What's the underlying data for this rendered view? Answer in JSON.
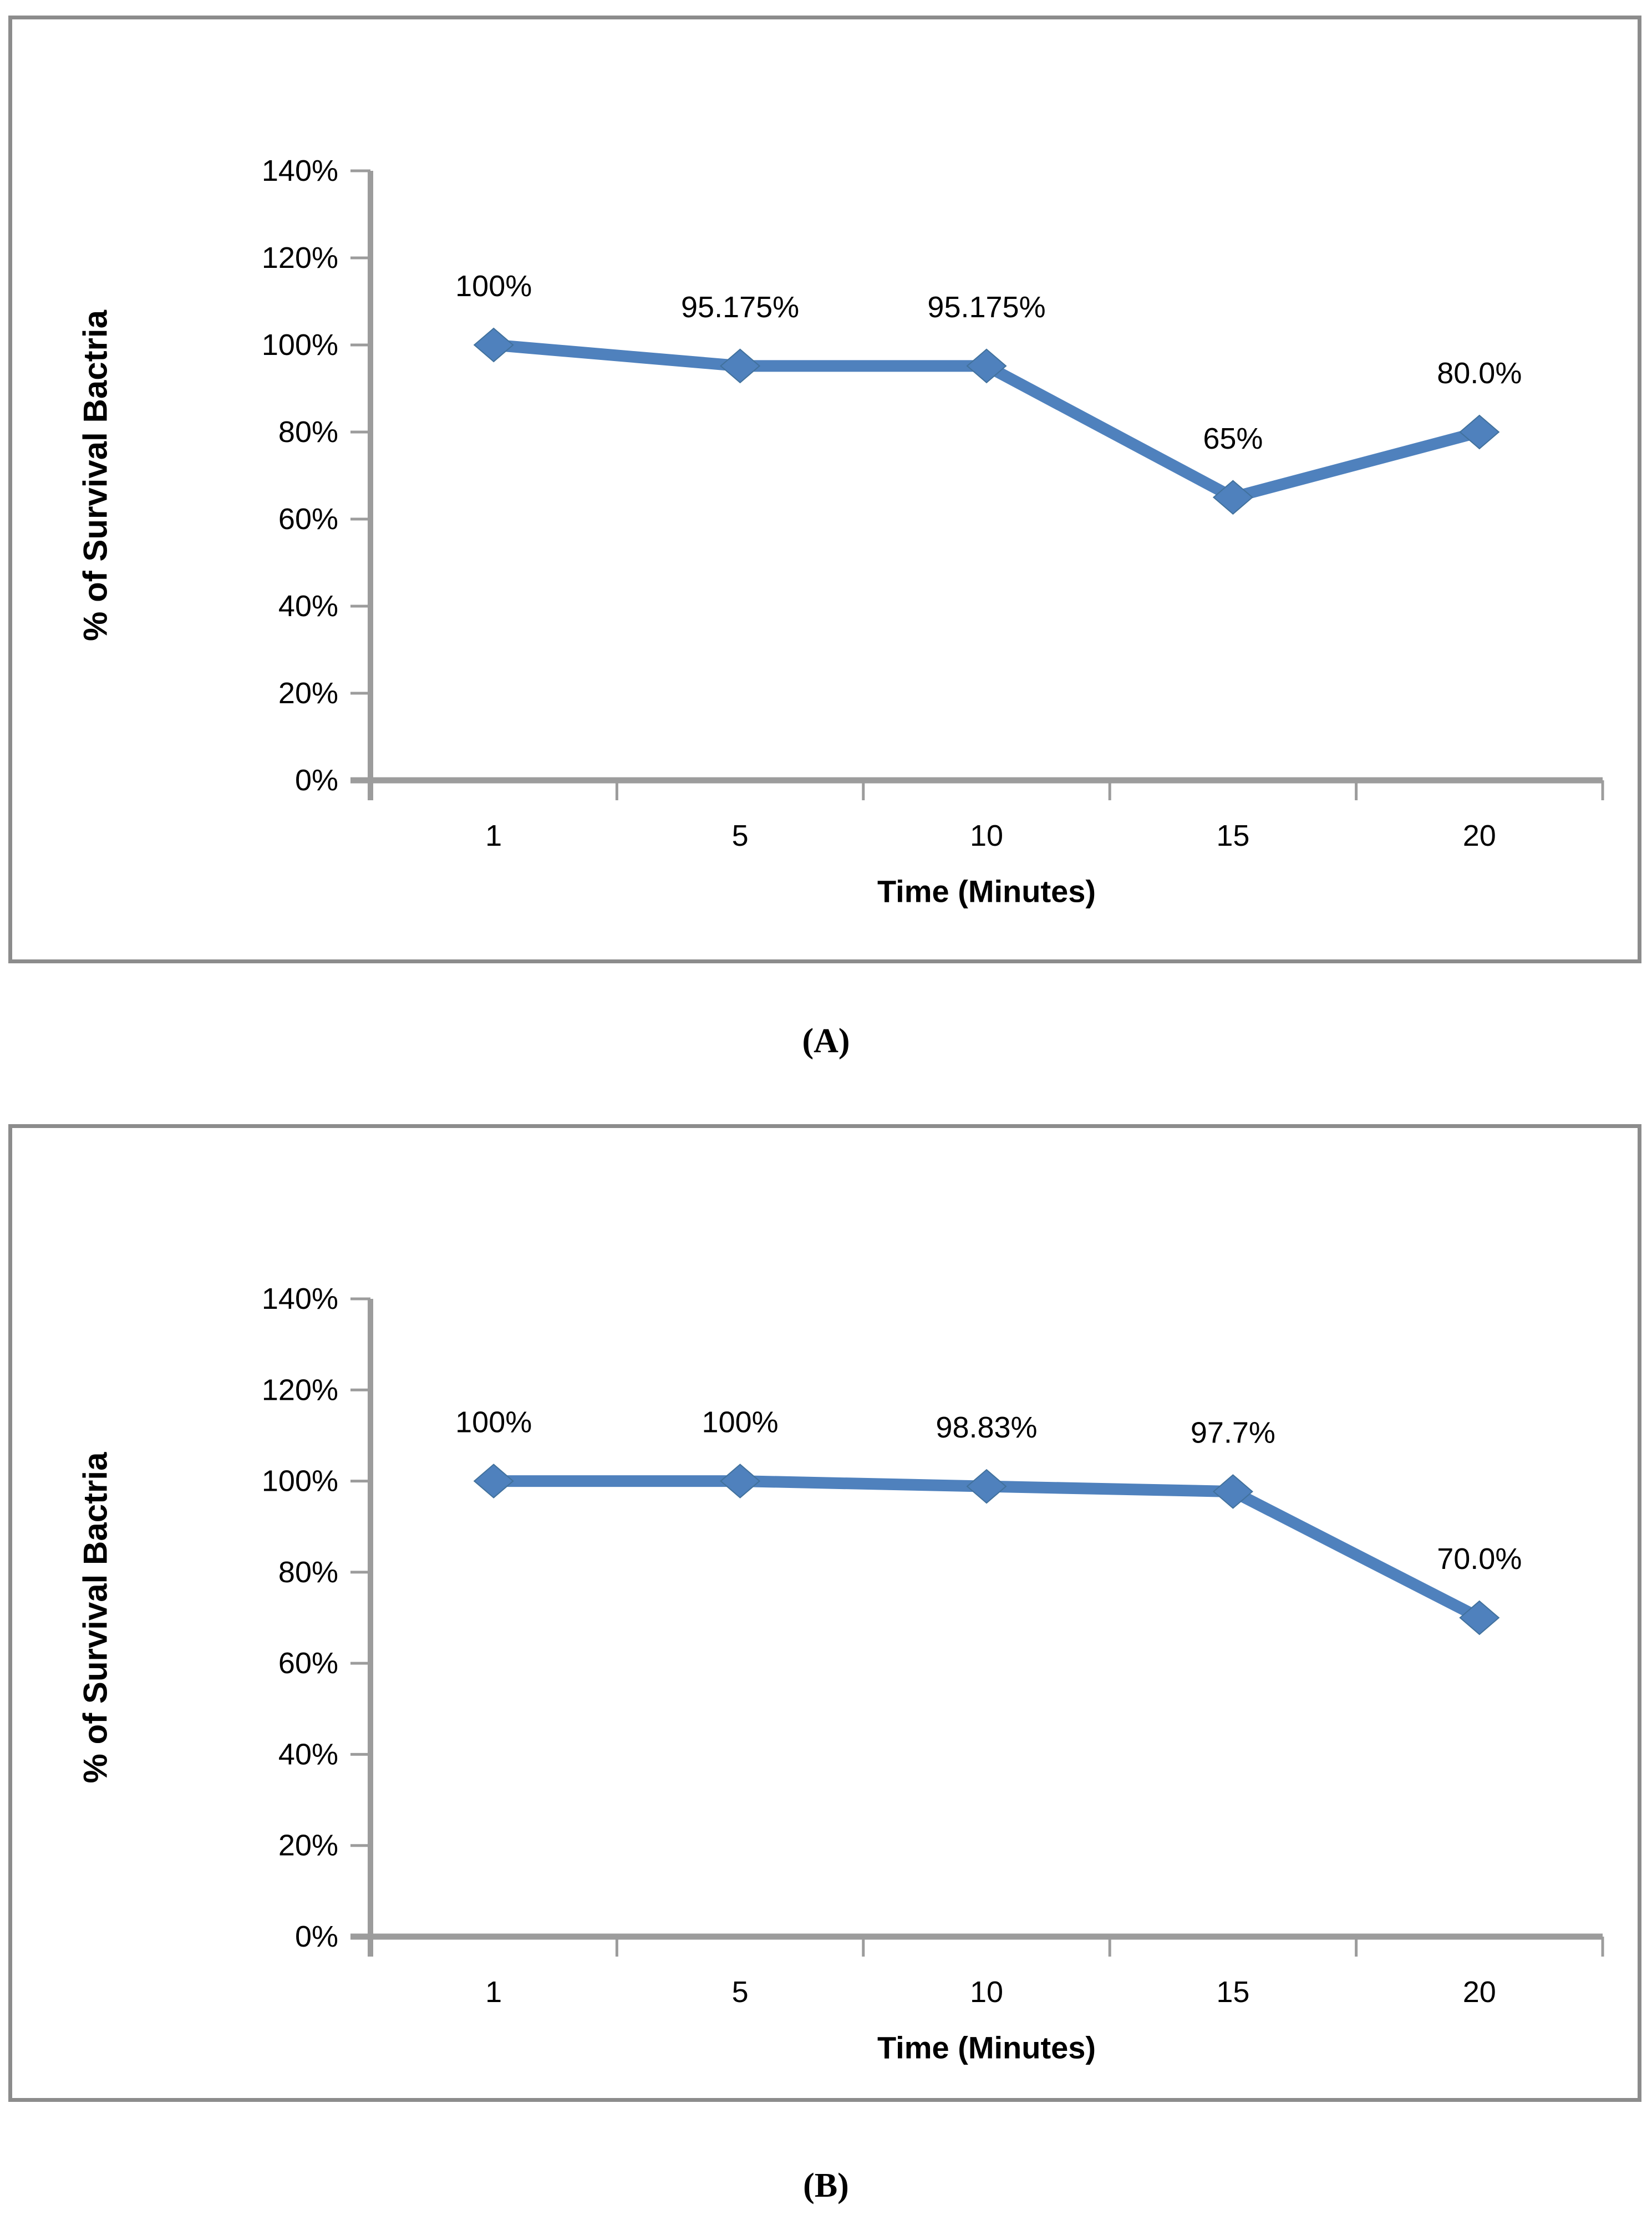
{
  "colors": {
    "series": "#4F81BD",
    "marker_edge": "#41719C",
    "axis": "#9C9C9C",
    "panel_border": "#8C8C8C",
    "text": "#000000"
  },
  "chart_data": [
    {
      "id": "A",
      "type": "line",
      "caption": "(A)",
      "categories": [
        "1",
        "5",
        "10",
        "15",
        "20"
      ],
      "values": [
        100,
        95.175,
        95.175,
        65,
        80
      ],
      "point_labels": [
        "100%",
        "95.175%",
        "95.175%",
        "65%",
        "80.0%"
      ],
      "xlabel": "Time (Minutes)",
      "ylabel": "% of Survival Bactria",
      "ylim": [
        0,
        140
      ],
      "ytick_step": 20,
      "ytick_labels": [
        "0%",
        "20%",
        "40%",
        "60%",
        "80%",
        "100%",
        "120%",
        "140%"
      ],
      "grid": "off",
      "legend": "none",
      "marker": "diamond"
    },
    {
      "id": "B",
      "type": "line",
      "caption": "(B)",
      "categories": [
        "1",
        "5",
        "10",
        "15",
        "20"
      ],
      "values": [
        100,
        100,
        98.83,
        97.7,
        70
      ],
      "point_labels": [
        "100%",
        "100%",
        "98.83%",
        "97.7%",
        "70.0%"
      ],
      "xlabel": "Time (Minutes)",
      "ylabel": "% of Survival Bactria",
      "ylim": [
        0,
        140
      ],
      "ytick_step": 20,
      "ytick_labels": [
        "0%",
        "20%",
        "40%",
        "60%",
        "80%",
        "100%",
        "120%",
        "140%"
      ],
      "grid": "off",
      "legend": "none",
      "marker": "diamond"
    }
  ]
}
